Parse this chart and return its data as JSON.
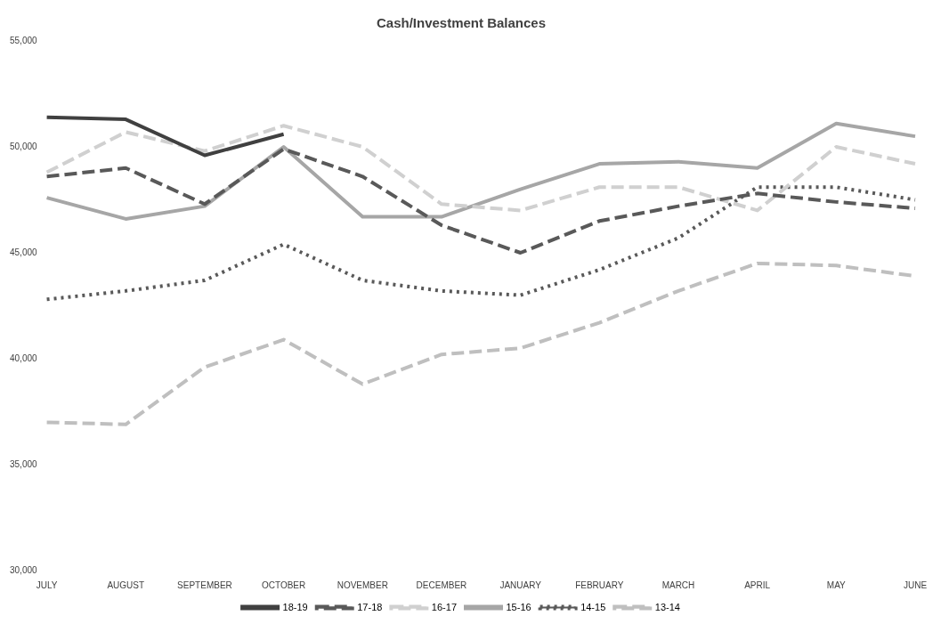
{
  "chart_data": {
    "type": "line",
    "title": "Cash/Investment Balances",
    "categories": [
      "JULY",
      "AUGUST",
      "SEPTEMBER",
      "OCTOBER",
      "NOVEMBER",
      "DECEMBER",
      "JANUARY",
      "FEBRUARY",
      "MARCH",
      "APRIL",
      "MAY",
      "JUNE"
    ],
    "ylim": [
      30000,
      55000
    ],
    "yticks": [
      {
        "value": 30000,
        "label": "30,000"
      },
      {
        "value": 35000,
        "label": "35,000"
      },
      {
        "value": 40000,
        "label": "40,000"
      },
      {
        "value": 45000,
        "label": "45,000"
      },
      {
        "value": 50000,
        "label": "50,000"
      },
      {
        "value": 55000,
        "label": "55,000"
      }
    ],
    "grid": false,
    "legend": "bottom",
    "marker": "none",
    "series": [
      {
        "name": "18-19",
        "color": "#404040",
        "line_style": "solid",
        "values": [
          51400,
          51300,
          49600,
          50600,
          null,
          null,
          null,
          null,
          null,
          null,
          null,
          null
        ]
      },
      {
        "name": "17-18",
        "color": "#595959",
        "line_style": "dashed",
        "values": [
          48600,
          49000,
          47300,
          49900,
          48600,
          46300,
          45000,
          46500,
          47200,
          47800,
          47400,
          47100
        ]
      },
      {
        "name": "16-17",
        "color": "#d0d0d0",
        "line_style": "dashed",
        "values": [
          48800,
          50700,
          49800,
          51000,
          50000,
          47300,
          47000,
          48100,
          48100,
          47000,
          50000,
          49200
        ]
      },
      {
        "name": "15-16",
        "color": "#a6a6a6",
        "line_style": "solid",
        "values": [
          47600,
          46600,
          47200,
          50000,
          46700,
          46700,
          48000,
          49200,
          49300,
          49000,
          51100,
          50500
        ]
      },
      {
        "name": "14-15",
        "color": "#595959",
        "line_style": "dotted",
        "values": [
          42800,
          43200,
          43700,
          45400,
          43700,
          43200,
          43000,
          44200,
          45700,
          48100,
          48100,
          47500
        ]
      },
      {
        "name": "13-14",
        "color": "#bfbfbf",
        "line_style": "dashed",
        "values": [
          37000,
          36900,
          39600,
          40900,
          38800,
          40200,
          40500,
          41700,
          43200,
          44500,
          44400,
          43900
        ]
      }
    ]
  }
}
